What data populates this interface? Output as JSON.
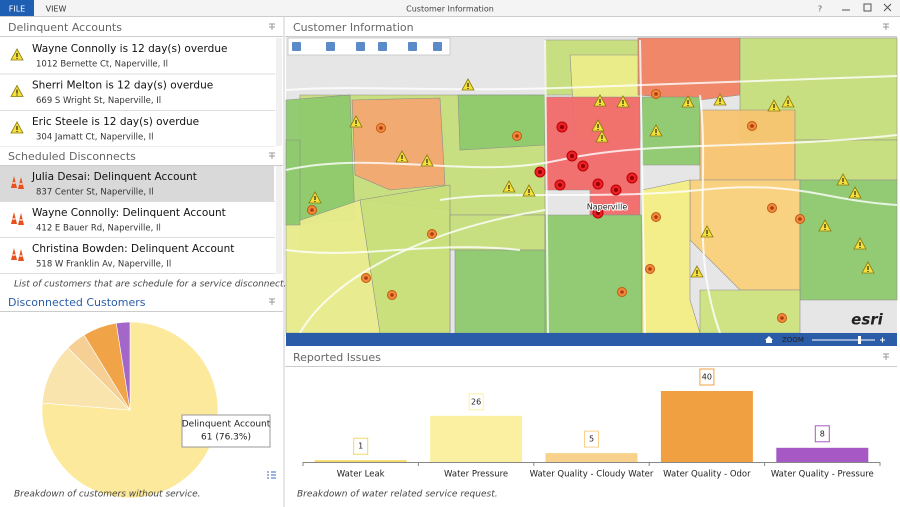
{
  "titlebar": {
    "title": "Customer Information",
    "menu": [
      "FILE",
      "VIEW"
    ],
    "help": "?"
  },
  "delinquent_accounts": {
    "title": "Delinquent Accounts",
    "items": [
      {
        "name": "Wayne Connolly is 12 day(s) overdue",
        "address": "1012 Bernette Ct, Naperville, Il"
      },
      {
        "name": "Sherri Melton is 12 day(s) overdue",
        "address": "669 S Wright St, Naperville, Il"
      },
      {
        "name": "Eric Steele is 12 day(s) overdue",
        "address": "304 Jamatt Ct, Naperville, Il"
      }
    ]
  },
  "scheduled_disconnects": {
    "title": "Scheduled Disconnects",
    "items": [
      {
        "name": "Julia Desai: Delinquent Account",
        "address": "837 Center St, Naperville, Il"
      },
      {
        "name": "Wayne Connolly: Delinquent Account",
        "address": "412 E Bauer Rd, Naperville, Il"
      },
      {
        "name": "Christina Bowden: Delinquent Account",
        "address": "518 W Franklin Av, Naperville, Il"
      }
    ],
    "footer": "List of customers that are schedule for a service disconnect."
  },
  "customer_information": {
    "title": "Customer Information",
    "map_label": "Naperville",
    "zoom": "ZOOM",
    "logo": "esri"
  },
  "chart_data": [
    {
      "type": "pie",
      "title": "Disconnected Customers",
      "caption": "Breakdown of customers without service.",
      "categories": [
        "Delinquent Account",
        null,
        null,
        null,
        null
      ],
      "values": [
        61,
        9,
        3,
        5,
        2
      ],
      "value_labels": [
        "61 (76.3%)",
        null,
        null,
        null,
        null
      ],
      "colors": [
        "#fce99c",
        "#f9e4ad",
        "#f6cf95",
        "#f0a447",
        "#a466c8"
      ]
    },
    {
      "type": "bar",
      "title": "Reported Issues",
      "caption": "Breakdown of water related service request.",
      "categories": [
        "Water Leak",
        "Water Pressure",
        "Water Quality - Cloudy Water",
        "Water Quality - Odor",
        "Water Quality - Pressure"
      ],
      "values": [
        1,
        26,
        5,
        40,
        8
      ],
      "colors": [
        "#f3d865",
        "#fbf0a2",
        "#f8d28c",
        "#f0a040",
        "#a659c4"
      ]
    }
  ]
}
